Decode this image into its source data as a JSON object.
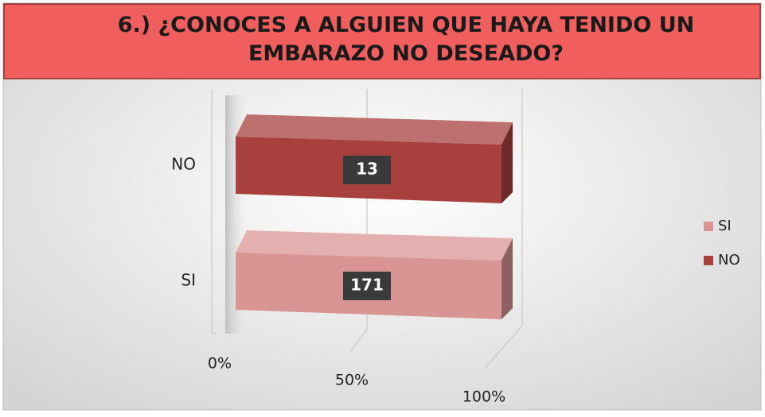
{
  "chart_data": {
    "type": "bar",
    "orientation": "horizontal",
    "stacking": "percent",
    "title": "6.) ¿CONOCES A ALGUIEN QUE HAYA TENIDO UN EMBARAZO NO DESEADO?",
    "categories": [
      "SI",
      "NO"
    ],
    "series": [
      {
        "name": "SI",
        "color": "#d99594",
        "values": [
          171,
          null
        ]
      },
      {
        "name": "NO",
        "color": "#a8403e",
        "values": [
          null,
          13
        ]
      }
    ],
    "xlim": [
      0,
      100
    ],
    "xticks": [
      {
        "value": 0,
        "label": "0%"
      },
      {
        "value": 50,
        "label": "50%"
      },
      {
        "value": 100,
        "label": "100%"
      }
    ],
    "grid": true,
    "legend": "right"
  }
}
